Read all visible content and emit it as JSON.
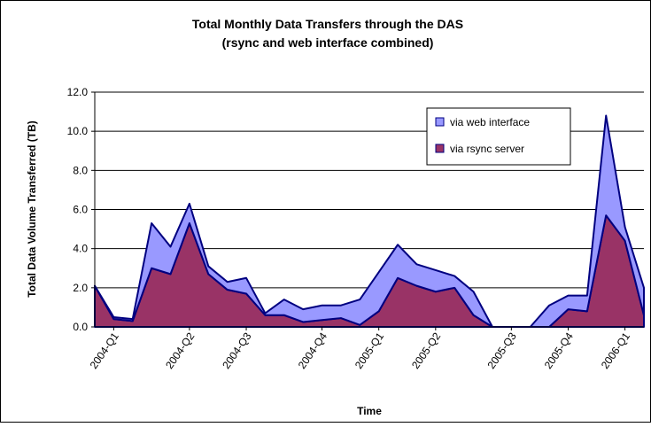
{
  "chart_data": {
    "type": "stacked_area",
    "title": "Total Monthly Data Transfers through the DAS",
    "subtitle": "(rsync and web interface combined)",
    "y_label": "Total Data Volume Transferred (TB)",
    "x_label": "Time",
    "categories": [
      null,
      "2004-Q1",
      null,
      null,
      null,
      "2004-Q2",
      null,
      null,
      "2004-Q3",
      null,
      null,
      null,
      "2004-Q4",
      null,
      null,
      "2005-Q1",
      null,
      null,
      "2005-Q2",
      null,
      null,
      null,
      "2005-Q3",
      null,
      null,
      "2005-Q4",
      null,
      null,
      "2006-Q1",
      null
    ],
    "series": [
      {
        "name": "via rsync server",
        "color": "#993366",
        "values": [
          2.1,
          0.4,
          0.3,
          3.0,
          2.7,
          5.3,
          2.7,
          1.9,
          1.7,
          0.6,
          0.6,
          0.25,
          0.35,
          0.45,
          0.1,
          0.8,
          2.5,
          2.1,
          1.8,
          2.0,
          0.6,
          0,
          0,
          0,
          0,
          0.9,
          0.8,
          5.7,
          4.4,
          0.6
        ]
      },
      {
        "name": "via web interface",
        "color": "#9999ff",
        "values": [
          0,
          0.1,
          0.1,
          2.3,
          1.4,
          1.0,
          0.4,
          0.4,
          0.8,
          0.1,
          0.8,
          0.65,
          0.75,
          0.65,
          1.3,
          2.0,
          1.7,
          1.1,
          1.1,
          0.6,
          1.2,
          0,
          0,
          0,
          1.1,
          0.7,
          0.8,
          5.1,
          0.7,
          1.4
        ]
      }
    ],
    "ylim": [
      0,
      12
    ],
    "yticks": [
      {
        "value": 0,
        "label": "0.0"
      },
      {
        "value": 2,
        "label": "2.0"
      },
      {
        "value": 4,
        "label": "4.0"
      },
      {
        "value": 6,
        "label": "6.0"
      },
      {
        "value": 8,
        "label": "8.0"
      },
      {
        "value": 10,
        "label": "10.0"
      },
      {
        "value": 12,
        "label": "12.0"
      }
    ],
    "grid": true,
    "legend": "upper right"
  }
}
